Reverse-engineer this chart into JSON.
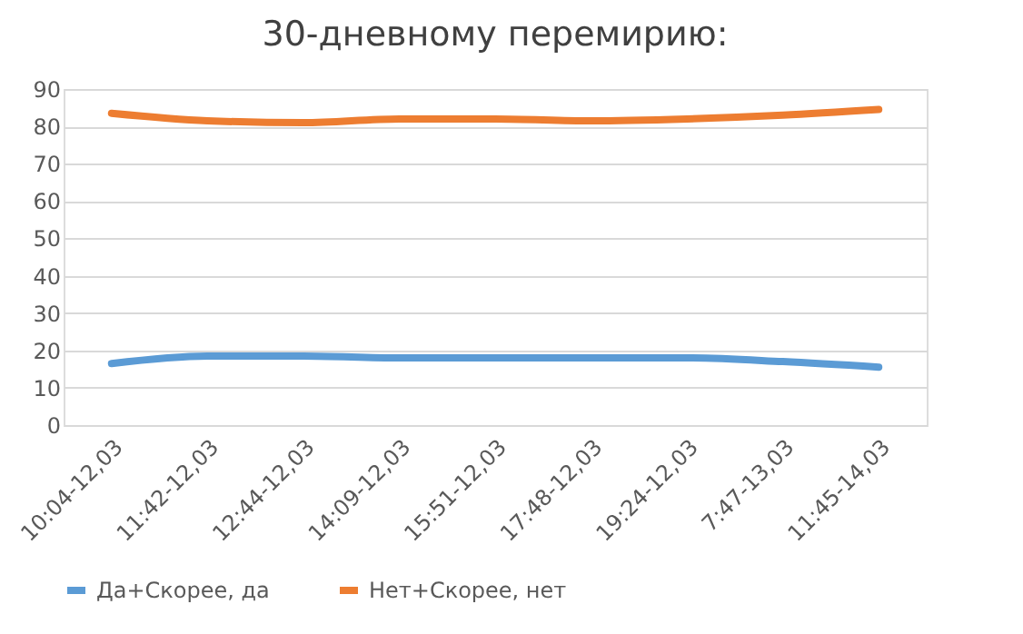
{
  "chart_data": {
    "type": "line",
    "title": "30-дневному перемирию:",
    "categories": [
      "10:04-12,03",
      "11:42-12,03",
      "12:44-12,03",
      "14:09-12,03",
      "15:51-12,03",
      "17:48-12,03",
      "19:24-12,03",
      "7:47-13,03",
      "11:45-14,03"
    ],
    "series": [
      {
        "name": "Да+Скорее, да",
        "color": "#5b9bd5",
        "values": [
          16.5,
          18.5,
          18.5,
          18,
          18,
          18,
          18,
          17,
          15.5
        ]
      },
      {
        "name": "Нет+Скорее, нет",
        "color": "#ed7d31",
        "values": [
          83.5,
          81.5,
          81,
          82,
          82,
          81.5,
          82,
          83,
          84.5
        ]
      }
    ],
    "ylim": [
      0,
      90
    ],
    "yticks": [
      0,
      10,
      20,
      30,
      40,
      50,
      60,
      70,
      80,
      90
    ],
    "grid": "y",
    "legend": "bottom",
    "marker": "none",
    "line_style": "solid"
  }
}
